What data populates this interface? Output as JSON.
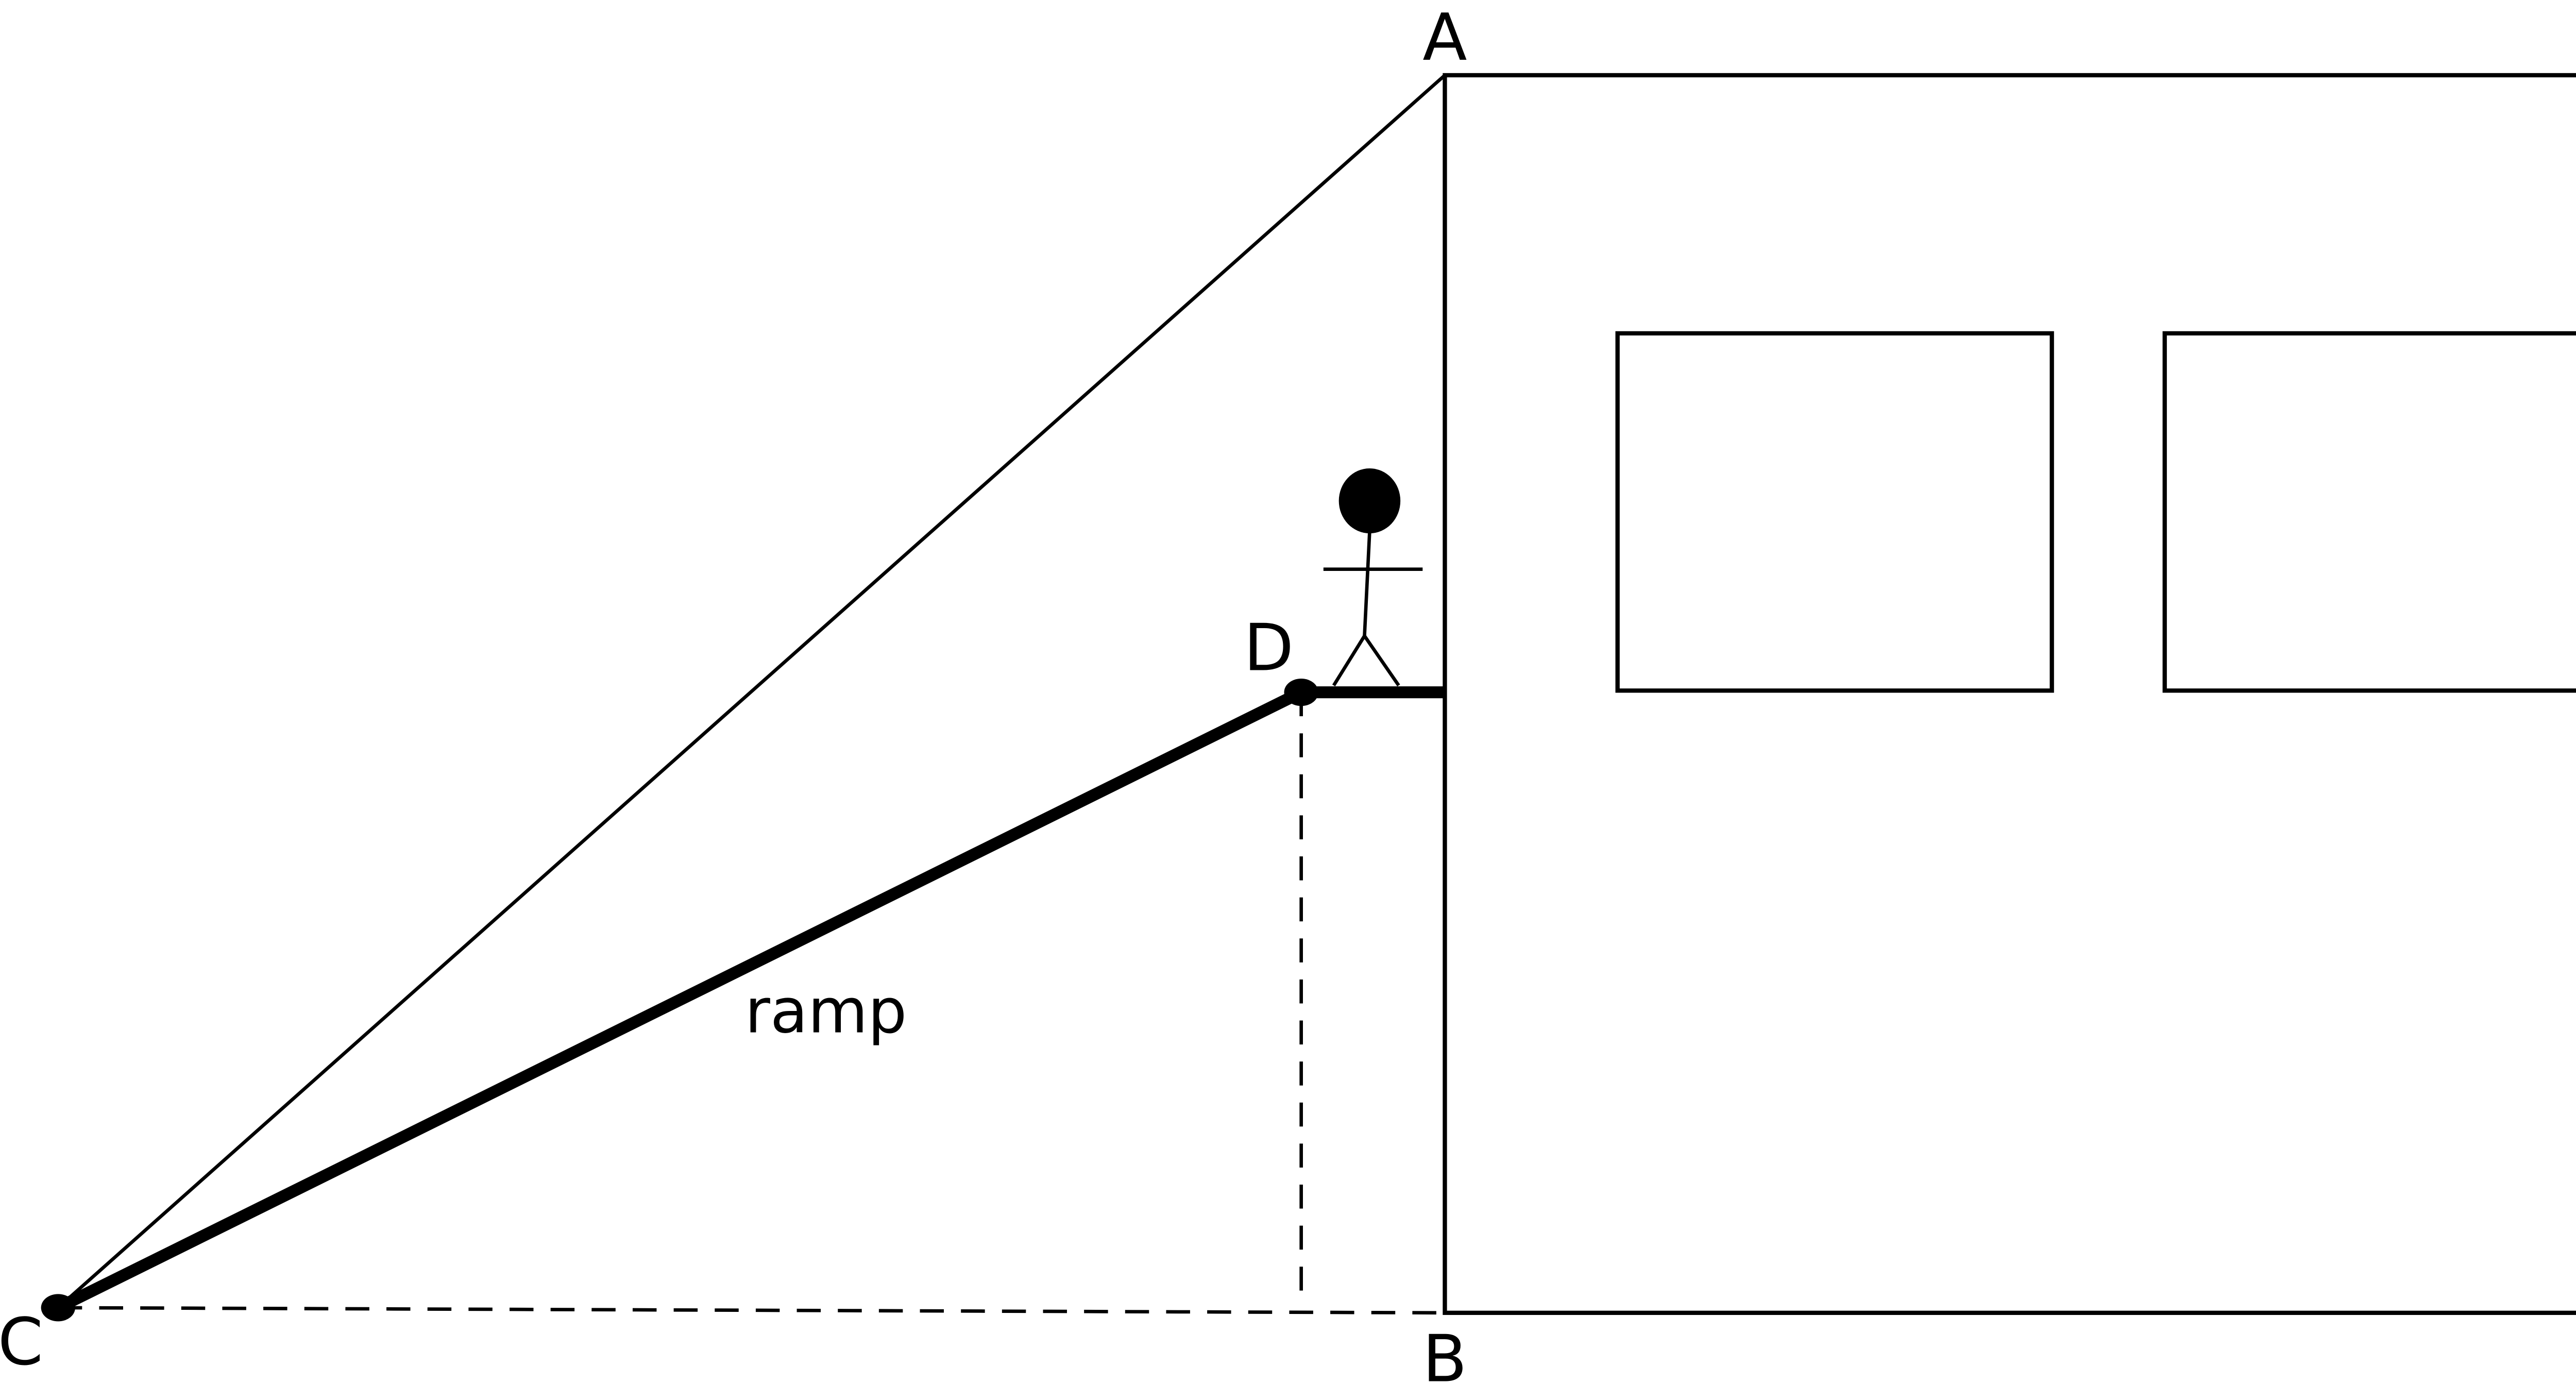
{
  "diagram": {
    "labels": {
      "a": "A",
      "b": "B",
      "c": "C",
      "d": "D",
      "ramp": "ramp"
    },
    "colors": {
      "stroke": "#000000",
      "background": "#ffffff"
    }
  }
}
